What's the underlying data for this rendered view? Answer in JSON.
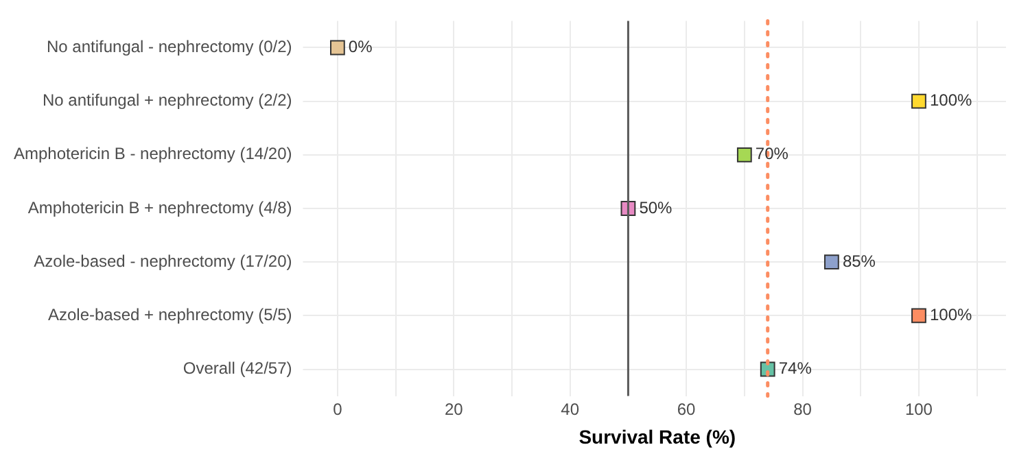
{
  "chart_data": {
    "type": "scatter",
    "orientation": "horizontal",
    "xlabel": "Survival Rate (%)",
    "categories": [
      "No antifungal - nephrectomy (0/2)",
      "No antifungal + nephrectomy (2/2)",
      "Amphotericin B - nephrectomy (14/20)",
      "Amphotericin B + nephrectomy (4/8)",
      "Azole-based - nephrectomy (17/20)",
      "Azole-based + nephrectomy (5/5)",
      "Overall (42/57)"
    ],
    "values": [
      0,
      100,
      70,
      50,
      85,
      100,
      74
    ],
    "colors": [
      "#e5c494",
      "#ffd92f",
      "#a6d854",
      "#e78ac3",
      "#8da0cb",
      "#fc8d62",
      "#66c2a5"
    ],
    "value_labels": [
      "0%",
      "100%",
      "70%",
      "50%",
      "85%",
      "100%",
      "74%"
    ],
    "xlim": [
      -5,
      115
    ],
    "xticks": [
      0,
      {
        "value": 10,
        "label": null
      },
      20,
      {
        "value": 30,
        "label": null
      },
      40,
      {
        "value": 50,
        "label": null
      },
      60,
      {
        "value": 70,
        "label": null
      },
      80,
      {
        "value": 90,
        "label": null
      },
      100,
      {
        "value": 110,
        "label": null
      }
    ],
    "ref_lines": [
      {
        "axis": "x",
        "value": 50,
        "label": null,
        "color": "#595959",
        "line_style": "solid"
      },
      {
        "axis": "x",
        "value": 74,
        "label": null,
        "color": "#fc8d62",
        "line_style": "dotted"
      }
    ],
    "grid": true,
    "legend": false,
    "marker": "square"
  }
}
